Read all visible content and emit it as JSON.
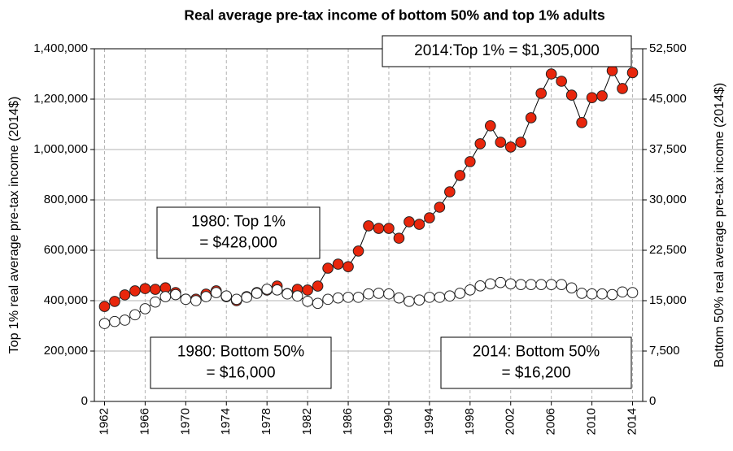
{
  "chart_data": {
    "type": "line",
    "title": "Real average pre-tax income of bottom 50% and top 1% adults",
    "ylabel": "Top 1% real average pre-tax income (2014$)",
    "y2label": "Bottom 50% real average pre-tax income (2014$)",
    "x": [
      1962,
      1963,
      1964,
      1965,
      1966,
      1967,
      1968,
      1969,
      1970,
      1971,
      1972,
      1973,
      1974,
      1975,
      1976,
      1977,
      1978,
      1979,
      1980,
      1981,
      1982,
      1983,
      1984,
      1985,
      1986,
      1987,
      1988,
      1989,
      1990,
      1991,
      1992,
      1993,
      1994,
      1995,
      1996,
      1997,
      1998,
      1999,
      2000,
      2001,
      2002,
      2003,
      2004,
      2005,
      2006,
      2007,
      2008,
      2009,
      2010,
      2011,
      2012,
      2013,
      2014
    ],
    "xlim": [
      1961,
      2015
    ],
    "xticks": [
      1962,
      1966,
      1970,
      1974,
      1978,
      1982,
      1986,
      1990,
      1994,
      1998,
      2002,
      2006,
      2010,
      2014
    ],
    "ylim": [
      0,
      1400000
    ],
    "yticks": [
      0,
      {
        "value": 200000,
        "label": "200,000"
      },
      {
        "value": 400000,
        "label": "400,000"
      },
      {
        "value": 600000,
        "label": "600,000"
      },
      {
        "value": 800000,
        "label": "800,000"
      },
      {
        "value": 1000000,
        "label": "1,000,000"
      },
      {
        "value": 1200000,
        "label": "1,200,000"
      },
      {
        "value": 1400000,
        "label": "1,400,000"
      }
    ],
    "y2lim": [
      0,
      52500
    ],
    "y2ticks": [
      0,
      {
        "value": 7500,
        "label": "7,500"
      },
      {
        "value": 15000,
        "label": "15,000"
      },
      {
        "value": 22500,
        "label": "22,500"
      },
      {
        "value": 30000,
        "label": "30,000"
      },
      {
        "value": 37500,
        "label": "37,500"
      },
      {
        "value": 45000,
        "label": "45,000"
      },
      {
        "value": 52500,
        "label": "52,500"
      }
    ],
    "grid": true,
    "series": [
      {
        "color": "#e8260c",
        "axis": "y",
        "values": [
          377000,
          397000,
          423000,
          439000,
          448000,
          445000,
          451000,
          432000,
          406000,
          406000,
          426000,
          439000,
          416000,
          400000,
          416000,
          432000,
          442000,
          458000,
          428000,
          445000,
          442000,
          458000,
          529000,
          545000,
          535000,
          597000,
          697000,
          687000,
          687000,
          648000,
          713000,
          703000,
          729000,
          771000,
          832000,
          897000,
          952000,
          1023000,
          1094000,
          1029000,
          1010000,
          1029000,
          1126000,
          1223000,
          1300000,
          1271000,
          1216000,
          1107000,
          1206000,
          1213000,
          1313000,
          1242000,
          1305000
        ]
      },
      {
        "color": "#ffffff",
        "axis": "y2",
        "values": [
          11600,
          11900,
          12100,
          12900,
          13800,
          14800,
          15600,
          15900,
          15200,
          15000,
          15600,
          16200,
          15700,
          15200,
          15500,
          16100,
          16700,
          16600,
          16000,
          15700,
          14900,
          14600,
          15200,
          15400,
          15500,
          15500,
          16000,
          16100,
          16000,
          15400,
          14900,
          15100,
          15500,
          15500,
          15700,
          16100,
          16600,
          17200,
          17500,
          17700,
          17500,
          17400,
          17400,
          17400,
          17400,
          17400,
          16900,
          16100,
          16000,
          16000,
          15900,
          16300,
          16200
        ]
      }
    ],
    "annotations": [
      {
        "lines": [
          "2014:Top 1% = $1,305,000"
        ]
      },
      {
        "lines": [
          "1980: Top 1%",
          "= $428,000"
        ]
      },
      {
        "lines": [
          "1980: Bottom 50%",
          "= $16,000"
        ]
      },
      {
        "lines": [
          "2014: Bottom 50%",
          "= $16,200"
        ]
      }
    ]
  }
}
